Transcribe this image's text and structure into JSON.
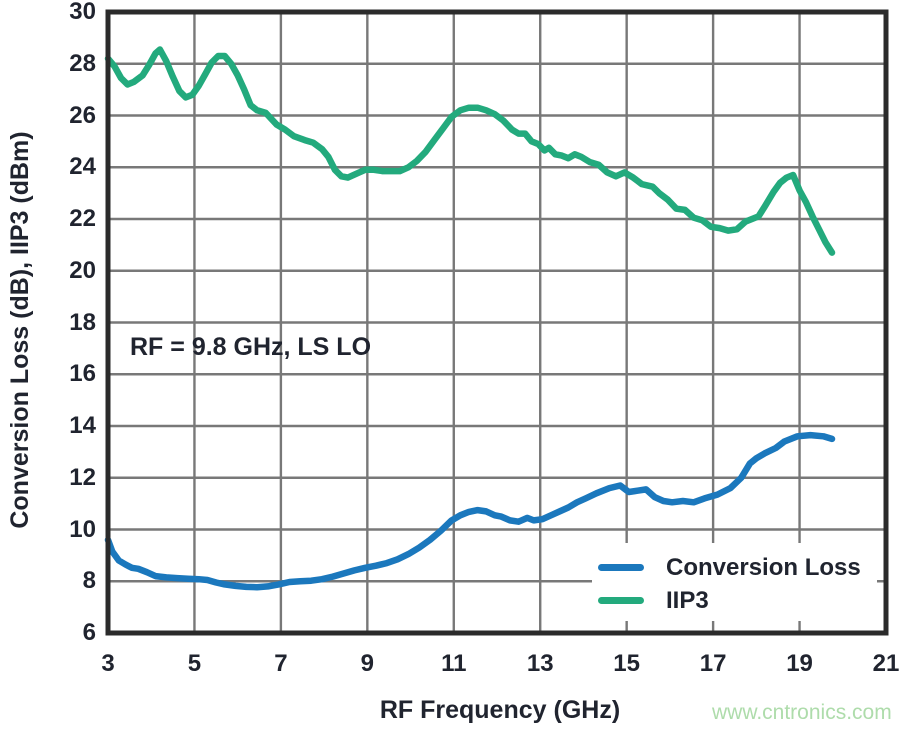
{
  "figure": {
    "y_axis_title": "Conversion Loss (dB), IIP3 (dBm)",
    "x_axis_title": "RF Frequency (GHz)",
    "annotation": "RF = 9.8 GHz, LS LO",
    "watermark": "www.cntronics.com"
  },
  "colors": {
    "conversion_loss": "#1b78bd",
    "iip3": "#23aa7d",
    "grid": "#787878",
    "axis": "#2b2b2b",
    "text": "#20242f",
    "watermark": "#aedcab",
    "background": "#ffffff"
  },
  "chart_data": {
    "type": "line",
    "title": "",
    "xlabel": "RF Frequency (GHz)",
    "ylabel": "Conversion Loss (dB), IIP3 (dBm)",
    "xlim": [
      3,
      21
    ],
    "ylim": [
      6,
      30
    ],
    "x_ticks": [
      3,
      5,
      7,
      9,
      11,
      13,
      15,
      17,
      19,
      21
    ],
    "y_ticks": [
      6,
      8,
      10,
      12,
      14,
      16,
      18,
      20,
      22,
      24,
      26,
      28,
      30
    ],
    "grid": true,
    "legend_position": "lower right",
    "annotation": "RF = 9.8 GHz, LS LO",
    "series": [
      {
        "name": "Conversion Loss",
        "color": "#1b78bd",
        "points": [
          [
            3.0,
            9.6
          ],
          [
            3.1,
            9.15
          ],
          [
            3.25,
            8.8
          ],
          [
            3.4,
            8.65
          ],
          [
            3.55,
            8.52
          ],
          [
            3.7,
            8.48
          ],
          [
            3.9,
            8.35
          ],
          [
            4.1,
            8.2
          ],
          [
            4.35,
            8.15
          ],
          [
            4.6,
            8.12
          ],
          [
            4.85,
            8.1
          ],
          [
            5.1,
            8.08
          ],
          [
            5.3,
            8.05
          ],
          [
            5.5,
            7.95
          ],
          [
            5.7,
            7.88
          ],
          [
            5.95,
            7.82
          ],
          [
            6.2,
            7.78
          ],
          [
            6.45,
            7.77
          ],
          [
            6.7,
            7.8
          ],
          [
            6.95,
            7.88
          ],
          [
            7.2,
            7.97
          ],
          [
            7.45,
            8.0
          ],
          [
            7.7,
            8.02
          ],
          [
            7.95,
            8.08
          ],
          [
            8.2,
            8.18
          ],
          [
            8.45,
            8.3
          ],
          [
            8.7,
            8.42
          ],
          [
            8.95,
            8.52
          ],
          [
            9.2,
            8.6
          ],
          [
            9.45,
            8.7
          ],
          [
            9.7,
            8.85
          ],
          [
            9.95,
            9.05
          ],
          [
            10.2,
            9.3
          ],
          [
            10.45,
            9.6
          ],
          [
            10.7,
            9.95
          ],
          [
            10.95,
            10.35
          ],
          [
            11.15,
            10.55
          ],
          [
            11.35,
            10.68
          ],
          [
            11.55,
            10.75
          ],
          [
            11.75,
            10.7
          ],
          [
            11.95,
            10.55
          ],
          [
            12.1,
            10.5
          ],
          [
            12.3,
            10.35
          ],
          [
            12.5,
            10.3
          ],
          [
            12.7,
            10.45
          ],
          [
            12.85,
            10.35
          ],
          [
            13.05,
            10.4
          ],
          [
            13.25,
            10.55
          ],
          [
            13.45,
            10.7
          ],
          [
            13.65,
            10.85
          ],
          [
            13.85,
            11.05
          ],
          [
            14.05,
            11.2
          ],
          [
            14.3,
            11.4
          ],
          [
            14.6,
            11.6
          ],
          [
            14.85,
            11.7
          ],
          [
            15.05,
            11.45
          ],
          [
            15.25,
            11.5
          ],
          [
            15.45,
            11.55
          ],
          [
            15.65,
            11.25
          ],
          [
            15.85,
            11.1
          ],
          [
            16.05,
            11.05
          ],
          [
            16.3,
            11.1
          ],
          [
            16.55,
            11.05
          ],
          [
            16.8,
            11.2
          ],
          [
            17.1,
            11.35
          ],
          [
            17.4,
            11.6
          ],
          [
            17.65,
            12.0
          ],
          [
            17.85,
            12.55
          ],
          [
            18.0,
            12.75
          ],
          [
            18.2,
            12.95
          ],
          [
            18.45,
            13.15
          ],
          [
            18.65,
            13.4
          ],
          [
            18.95,
            13.6
          ],
          [
            19.25,
            13.65
          ],
          [
            19.55,
            13.6
          ],
          [
            19.75,
            13.5
          ]
        ]
      },
      {
        "name": "IIP3",
        "color": "#23aa7d",
        "points": [
          [
            3.0,
            28.2
          ],
          [
            3.15,
            27.9
          ],
          [
            3.3,
            27.45
          ],
          [
            3.45,
            27.2
          ],
          [
            3.6,
            27.3
          ],
          [
            3.8,
            27.55
          ],
          [
            3.95,
            27.95
          ],
          [
            4.1,
            28.4
          ],
          [
            4.2,
            28.55
          ],
          [
            4.35,
            28.1
          ],
          [
            4.5,
            27.5
          ],
          [
            4.65,
            26.95
          ],
          [
            4.8,
            26.7
          ],
          [
            4.95,
            26.8
          ],
          [
            5.1,
            27.15
          ],
          [
            5.25,
            27.6
          ],
          [
            5.4,
            28.05
          ],
          [
            5.55,
            28.3
          ],
          [
            5.7,
            28.3
          ],
          [
            5.85,
            28.0
          ],
          [
            6.0,
            27.55
          ],
          [
            6.15,
            27.0
          ],
          [
            6.3,
            26.4
          ],
          [
            6.45,
            26.2
          ],
          [
            6.65,
            26.1
          ],
          [
            6.9,
            25.65
          ],
          [
            7.1,
            25.45
          ],
          [
            7.3,
            25.2
          ],
          [
            7.55,
            25.05
          ],
          [
            7.75,
            24.95
          ],
          [
            7.95,
            24.7
          ],
          [
            8.1,
            24.4
          ],
          [
            8.25,
            23.9
          ],
          [
            8.4,
            23.65
          ],
          [
            8.55,
            23.6
          ],
          [
            8.75,
            23.75
          ],
          [
            8.95,
            23.9
          ],
          [
            9.15,
            23.9
          ],
          [
            9.35,
            23.85
          ],
          [
            9.55,
            23.85
          ],
          [
            9.75,
            23.85
          ],
          [
            9.95,
            24.0
          ],
          [
            10.15,
            24.25
          ],
          [
            10.35,
            24.6
          ],
          [
            10.55,
            25.05
          ],
          [
            10.75,
            25.5
          ],
          [
            10.95,
            25.95
          ],
          [
            11.15,
            26.2
          ],
          [
            11.35,
            26.3
          ],
          [
            11.55,
            26.3
          ],
          [
            11.75,
            26.2
          ],
          [
            11.95,
            26.05
          ],
          [
            12.15,
            25.8
          ],
          [
            12.35,
            25.45
          ],
          [
            12.5,
            25.3
          ],
          [
            12.65,
            25.3
          ],
          [
            12.8,
            25.0
          ],
          [
            12.95,
            24.9
          ],
          [
            13.1,
            24.65
          ],
          [
            13.2,
            24.75
          ],
          [
            13.35,
            24.5
          ],
          [
            13.5,
            24.45
          ],
          [
            13.65,
            24.35
          ],
          [
            13.8,
            24.5
          ],
          [
            13.95,
            24.4
          ],
          [
            14.15,
            24.2
          ],
          [
            14.35,
            24.1
          ],
          [
            14.55,
            23.8
          ],
          [
            14.75,
            23.65
          ],
          [
            14.95,
            23.8
          ],
          [
            15.15,
            23.6
          ],
          [
            15.35,
            23.35
          ],
          [
            15.6,
            23.25
          ],
          [
            15.75,
            23.0
          ],
          [
            15.95,
            22.75
          ],
          [
            16.15,
            22.4
          ],
          [
            16.35,
            22.35
          ],
          [
            16.55,
            22.05
          ],
          [
            16.75,
            21.95
          ],
          [
            16.95,
            21.7
          ],
          [
            17.15,
            21.65
          ],
          [
            17.35,
            21.55
          ],
          [
            17.55,
            21.6
          ],
          [
            17.75,
            21.9
          ],
          [
            17.9,
            22.0
          ],
          [
            18.05,
            22.1
          ],
          [
            18.2,
            22.5
          ],
          [
            18.4,
            23.05
          ],
          [
            18.55,
            23.4
          ],
          [
            18.7,
            23.6
          ],
          [
            18.85,
            23.7
          ],
          [
            19.0,
            23.1
          ],
          [
            19.15,
            22.65
          ],
          [
            19.3,
            22.1
          ],
          [
            19.45,
            21.6
          ],
          [
            19.6,
            21.1
          ],
          [
            19.75,
            20.7
          ]
        ]
      }
    ]
  }
}
